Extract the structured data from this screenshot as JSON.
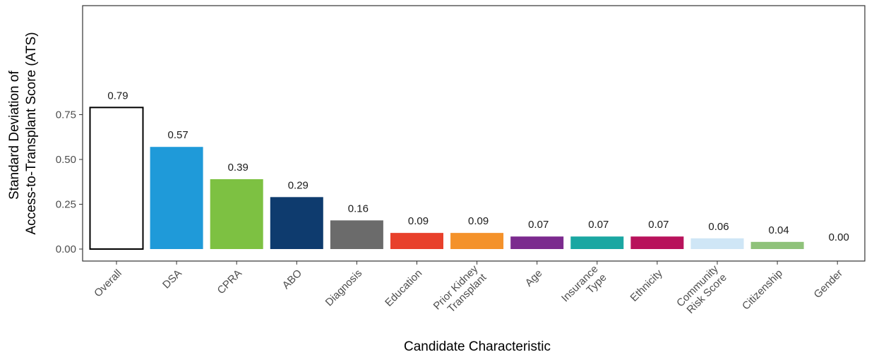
{
  "chart_data": {
    "type": "bar",
    "title": "",
    "xlabel": "Candidate Characteristic",
    "ylabel": [
      "Standard Deviation of",
      "Access-to-Transplant Score (ATS)"
    ],
    "ylim": [
      0,
      0.92
    ],
    "yticks": [
      0.0,
      0.25,
      0.5,
      0.75
    ],
    "ytick_labels": [
      "0.00",
      "0.25",
      "0.50",
      "0.75"
    ],
    "grid": false,
    "legend": "none",
    "categories": [
      [
        "Overall"
      ],
      [
        "DSA"
      ],
      [
        "CPRA"
      ],
      [
        "ABO"
      ],
      [
        "Diagnosis"
      ],
      [
        "Education"
      ],
      [
        "Prior Kidney",
        "Transplant"
      ],
      [
        "Age"
      ],
      [
        "Insurance",
        "Type"
      ],
      [
        "Ethnicity"
      ],
      [
        "Community",
        "Risk Score"
      ],
      [
        "Citizenship"
      ],
      [
        "Gender"
      ]
    ],
    "values": [
      0.79,
      0.57,
      0.39,
      0.29,
      0.16,
      0.09,
      0.09,
      0.07,
      0.07,
      0.07,
      0.06,
      0.04,
      0.0
    ],
    "labels": [
      "0.79",
      "0.57",
      "0.39",
      "0.29",
      "0.16",
      "0.09",
      "0.09",
      "0.07",
      "0.07",
      "0.07",
      "0.06",
      "0.04",
      "0.00"
    ],
    "colors": [
      "#ffffff",
      "#1f9ad9",
      "#7dc142",
      "#0e3b6e",
      "#6b6b6b",
      "#e8402b",
      "#f4922a",
      "#7b2a8e",
      "#1aa7a2",
      "#b8125b",
      "#cfe6f6",
      "#8fc27a",
      "#ffffff"
    ],
    "outline_colors": [
      "#000000",
      null,
      null,
      null,
      null,
      null,
      null,
      null,
      null,
      null,
      null,
      null,
      null
    ]
  }
}
